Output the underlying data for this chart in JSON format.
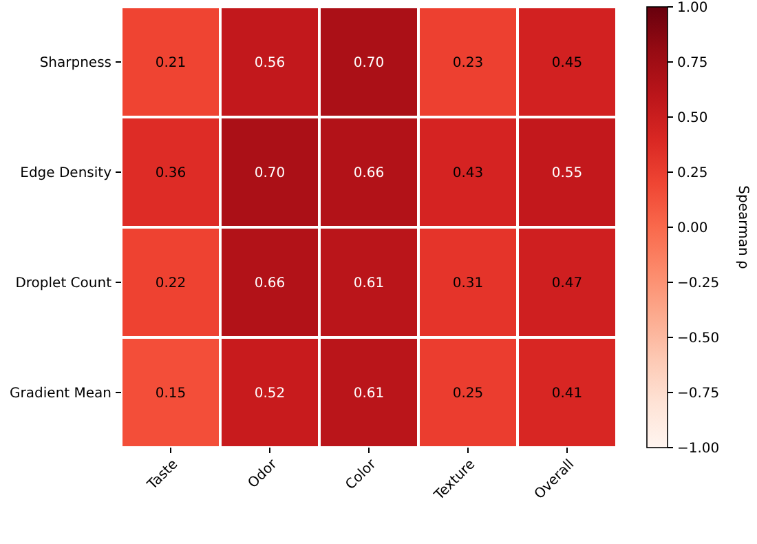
{
  "chart_data": {
    "type": "heatmap",
    "categories": [
      "Taste",
      "Odor",
      "Color",
      "Texture",
      "Overall"
    ],
    "y_categories": [
      "Sharpness",
      "Edge Density",
      "Droplet Count",
      "Gradient Mean"
    ],
    "cells": [
      [
        0.21,
        0.56,
        0.7,
        0.23,
        0.45
      ],
      [
        0.36,
        0.7,
        0.66,
        0.43,
        0.55
      ],
      [
        0.22,
        0.66,
        0.61,
        0.31,
        0.47
      ],
      [
        0.15,
        0.52,
        0.61,
        0.25,
        0.41
      ]
    ],
    "cell_labels": [
      [
        "0.21",
        "0.56",
        "0.70",
        "0.23",
        "0.45"
      ],
      [
        "0.36",
        "0.70",
        "0.66",
        "0.43",
        "0.55"
      ],
      [
        "0.22",
        "0.66",
        "0.61",
        "0.31",
        "0.47"
      ],
      [
        "0.15",
        "0.52",
        "0.61",
        "0.25",
        "0.41"
      ]
    ],
    "clabel": "Spearman ρ",
    "clim": [
      -1,
      1
    ],
    "cticks": [
      {
        "value": -1,
        "label": "−1.00"
      },
      {
        "value": -0.75,
        "label": "−0.75"
      },
      {
        "value": -0.5,
        "label": "−0.50"
      },
      {
        "value": -0.25,
        "label": "−0.25"
      },
      {
        "value": 0,
        "label": "0.00"
      },
      {
        "value": 0.25,
        "label": "0.25"
      },
      {
        "value": 0.5,
        "label": "0.50"
      },
      {
        "value": 0.75,
        "label": "0.75"
      },
      {
        "value": 1,
        "label": "1.00"
      }
    ]
  }
}
